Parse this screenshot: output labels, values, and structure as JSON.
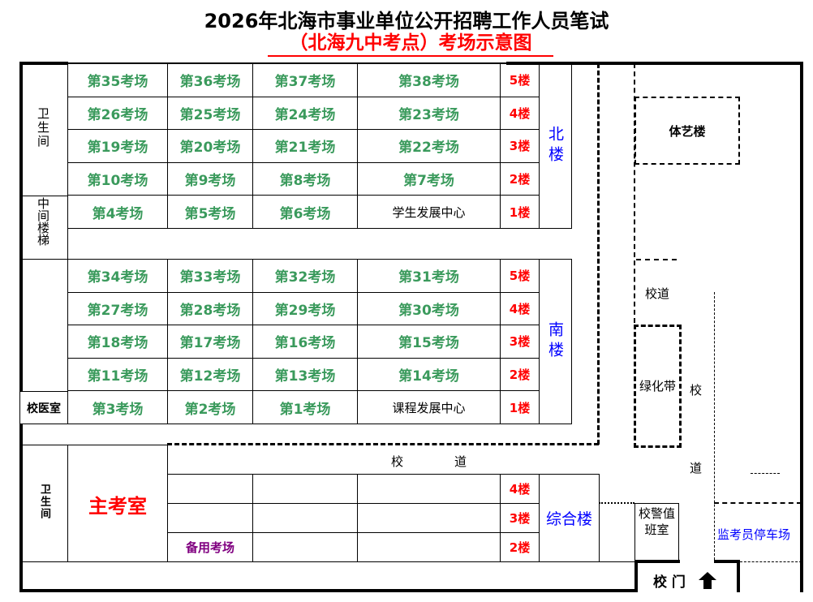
{
  "title": "2026年北海市事业单位公开招聘工作人员笔试",
  "subtitle": "（北海九中考点）考场示意图",
  "colors": {
    "room": "#3a9a5c",
    "floor": "#ff0000",
    "building": "#0000ff",
    "main_office": "#ff0000",
    "spare": "#800080"
  },
  "north_building": {
    "name": "北楼",
    "rows": [
      {
        "rooms": [
          "第35考场",
          "第36考场",
          "第37考场",
          "第38考场"
        ],
        "floor": "5楼"
      },
      {
        "rooms": [
          "第26考场",
          "第25考场",
          "第24考场",
          "第23考场"
        ],
        "floor": "4楼"
      },
      {
        "rooms": [
          "第19考场",
          "第20考场",
          "第21考场",
          "第22考场"
        ],
        "floor": "3楼"
      },
      {
        "rooms": [
          "第10考场",
          "第9考场",
          "第8考场",
          "第7考场"
        ],
        "floor": "2楼"
      },
      {
        "rooms": [
          "第4考场",
          "第5考场",
          "第6考场",
          "学生发展中心"
        ],
        "floor": "1楼"
      }
    ]
  },
  "south_building": {
    "name": "南楼",
    "rows": [
      {
        "rooms": [
          "第34考场",
          "第33考场",
          "第32考场",
          "第31考场"
        ],
        "floor": "5楼"
      },
      {
        "rooms": [
          "第27考场",
          "第28考场",
          "第29考场",
          "第30考场"
        ],
        "floor": "4楼"
      },
      {
        "rooms": [
          "第18考场",
          "第17考场",
          "第16考场",
          "第15考场"
        ],
        "floor": "3楼"
      },
      {
        "rooms": [
          "第11考场",
          "第12考场",
          "第13考场",
          "第14考场"
        ],
        "floor": "2楼"
      },
      {
        "rooms": [
          "第3考场",
          "第2考场",
          "第1考场",
          "课程发展中心"
        ],
        "floor": "1楼"
      }
    ]
  },
  "complex_building": {
    "name": "综合楼",
    "rows": [
      {
        "rooms": [
          "",
          "",
          ""
        ],
        "floor": "4楼"
      },
      {
        "rooms": [
          "",
          "",
          ""
        ],
        "floor": "3楼"
      },
      {
        "rooms": [
          "备用考场",
          "",
          ""
        ],
        "floor": "2楼"
      }
    ]
  },
  "labels": {
    "restroom_top": "卫生间",
    "stairs": "中间楼梯",
    "clinic": "校医室",
    "restroom_bottom": "卫生间",
    "main_office": "主考室",
    "sports_art_building": "体艺楼",
    "road_right": "校道",
    "green_belt": "绿化带",
    "road_vertical_1": "校",
    "road_vertical_2": "道",
    "road_horizontal_1": "校",
    "road_horizontal_2": "道",
    "guard_room": "校警值班室",
    "parking": "监考员停车场",
    "gate": "校 门"
  }
}
